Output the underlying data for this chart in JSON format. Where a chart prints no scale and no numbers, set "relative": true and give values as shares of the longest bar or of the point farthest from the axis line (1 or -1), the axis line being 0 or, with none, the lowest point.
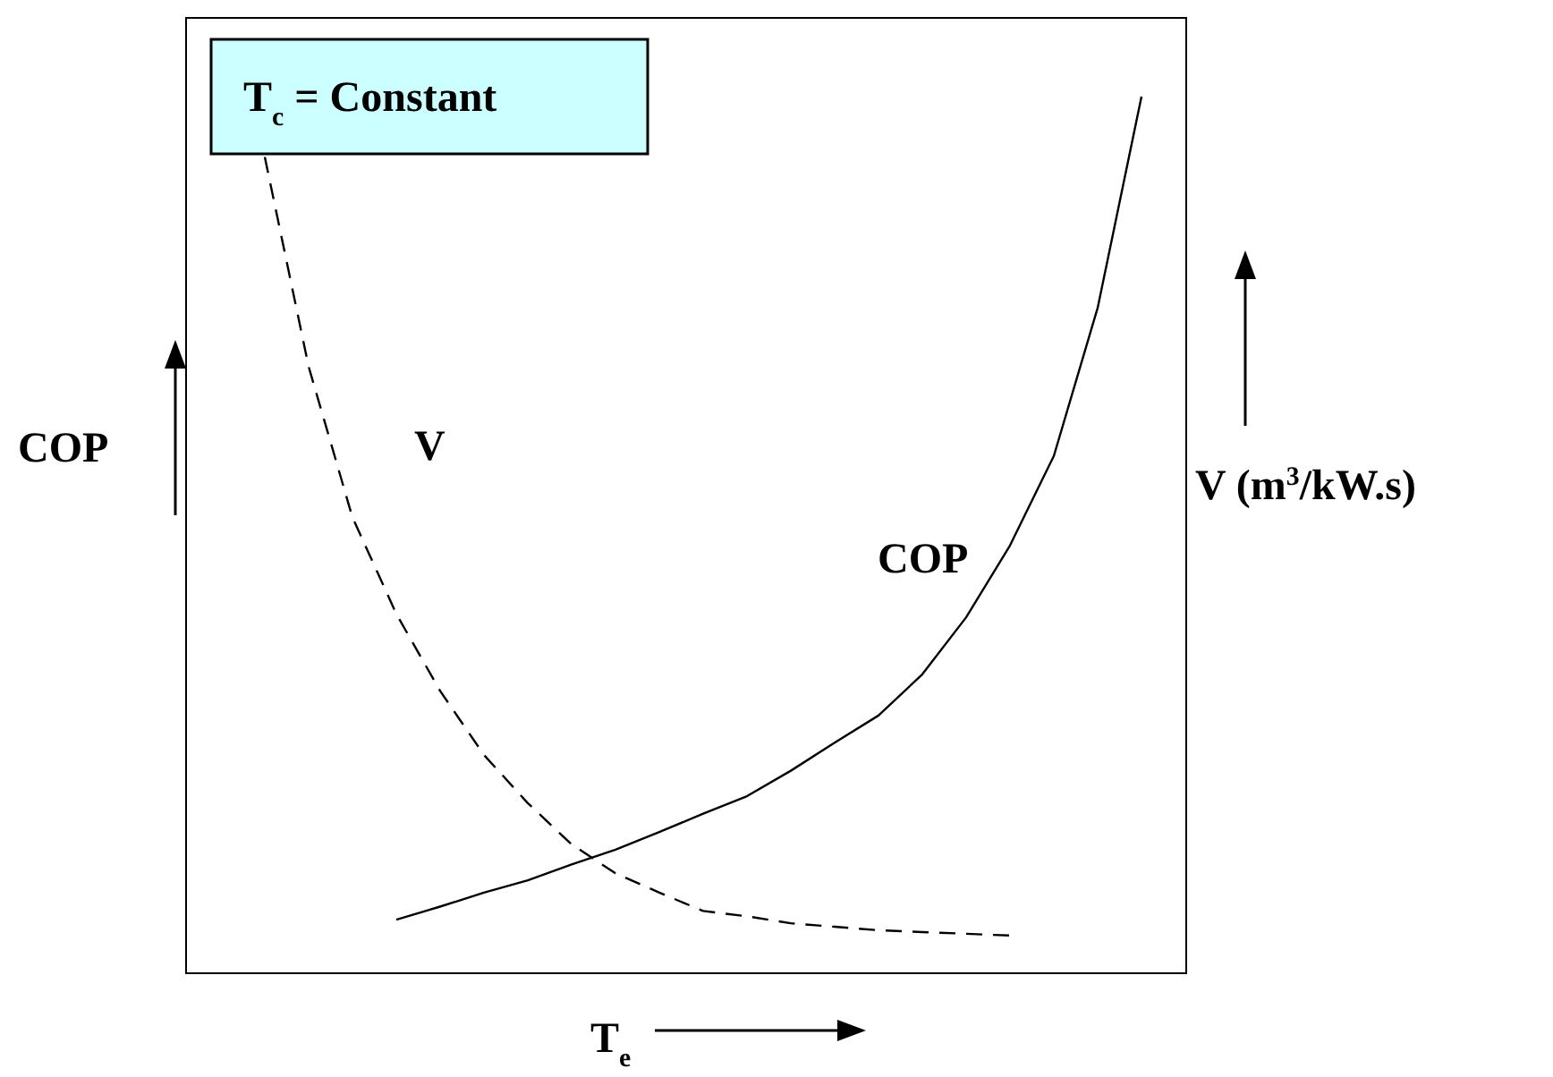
{
  "chart_data": {
    "type": "line",
    "relative": true,
    "xlabel": "T$_{e}$",
    "ylabel": "COP",
    "y2label": "V (m$^{3}$/kW.s)",
    "annotations": [
      "T$_{c}$ = Constant"
    ],
    "categories": [
      null,
      null,
      null,
      null,
      null,
      null,
      null,
      null,
      null,
      null,
      null,
      null,
      null,
      null,
      null,
      null,
      null,
      null,
      null,
      null,
      null
    ],
    "series": [
      {
        "name": "COP",
        "color": "#000000",
        "line_style": "solid",
        "values": [
          null,
          null,
          null,
          0.061,
          0.076,
          0.092,
          0.106,
          0.124,
          0.141,
          0.161,
          0.182,
          0.202,
          0.231,
          0.263,
          0.294,
          0.341,
          0.406,
          0.488,
          0.59,
          0.759,
          1
        ]
      },
      {
        "name": "V",
        "color": "#000000",
        "line_style": "dashed",
        "values": [
          0.931,
          0.692,
          0.52,
          0.41,
          0.322,
          0.249,
          0.194,
          0.147,
          0.114,
          0.092,
          0.071,
          0.065,
          0.057,
          0.053,
          0.049,
          0.047,
          0.045,
          0.043,
          null,
          null,
          null
        ]
      }
    ]
  }
}
